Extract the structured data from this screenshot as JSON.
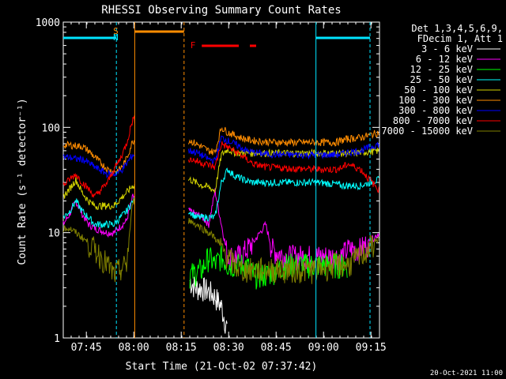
{
  "chart_data": {
    "type": "line",
    "title": "RHESSI Observing Summary Count Rates",
    "xlabel": "Start Time (21-Oct-02 07:37:42)",
    "ylabel": "Count Rate (s⁻¹ detector⁻¹)",
    "yscale": "log",
    "ylim": [
      1,
      1000
    ],
    "y_ticks": [
      1,
      10,
      100,
      1000
    ],
    "y_tick_labels": [
      "1",
      "10",
      "100",
      "1000"
    ],
    "xlim_minutes": [
      0,
      100
    ],
    "x_ticks_minutes": [
      7.3,
      22.3,
      37.3,
      52.3,
      67.3,
      82.3,
      97.3
    ],
    "x_tick_labels": [
      "07:45",
      "08:00",
      "08:15",
      "08:30",
      "08:45",
      "09:00",
      "09:15"
    ],
    "legend_header": [
      "Det 1,3,4,5,6,9,",
      "FDecim 1, Att 1"
    ],
    "legend_position": "right",
    "timestamp": "20-Oct-2021 11:00",
    "flags": [
      {
        "label": "S",
        "color": "#ff8c00",
        "start_min": 22.3,
        "end_min": 38.2
      },
      {
        "label": "N",
        "color": "#00e5ff",
        "start_min": 0,
        "end_min": 16.8
      },
      {
        "label": "F",
        "color": "#ff0000",
        "start_min": 43.8,
        "end_min": 60.0
      }
    ],
    "series": [
      {
        "name": "3 - 6 keV",
        "color": "#ffffff",
        "x": [
          40,
          42,
          44,
          46,
          48,
          50,
          52
        ],
        "y": [
          3.5,
          3.0,
          3.0,
          2.8,
          2.5,
          2.0,
          1.2
        ]
      },
      {
        "name": "6 - 12 keV",
        "color": "#ff00ff",
        "x": [
          0,
          2,
          4,
          6,
          8,
          10,
          14,
          16,
          20,
          22,
          40,
          44,
          46,
          48,
          50,
          52,
          54,
          56,
          58,
          60,
          64,
          66,
          70,
          80,
          86,
          88,
          90,
          94,
          100
        ],
        "y": [
          12,
          15,
          20,
          15,
          12,
          11,
          10,
          10,
          13,
          22,
          16,
          14,
          12,
          25,
          12,
          6,
          6,
          6,
          7,
          8,
          12,
          7,
          6,
          6,
          6,
          6,
          7,
          7,
          10
        ]
      },
      {
        "name": "12 - 25 keV",
        "color": "#00ff00",
        "x": [
          40,
          44,
          46,
          48,
          50,
          52,
          54,
          56,
          58,
          60,
          64,
          70,
          80,
          86,
          88,
          90
        ],
        "y": [
          4,
          4.5,
          6,
          5,
          6,
          5,
          5,
          5,
          5,
          4,
          4,
          5,
          5,
          5,
          5,
          5
        ]
      },
      {
        "name": "25 - 50 keV",
        "color": "#00ffff",
        "x": [
          0,
          2,
          4,
          6,
          8,
          10,
          14,
          16,
          20,
          22,
          40,
          42,
          44,
          46,
          48,
          50,
          52,
          54,
          56,
          58,
          60,
          64,
          70,
          80,
          86,
          88,
          90,
          94,
          100
        ],
        "y": [
          14,
          16,
          20,
          16,
          14,
          12,
          12,
          12,
          16,
          20,
          16,
          14,
          14,
          14,
          14,
          30,
          40,
          35,
          33,
          31,
          30,
          30,
          30,
          30,
          29,
          28,
          28,
          28,
          32
        ]
      },
      {
        "name": "50 - 100 keV",
        "color": "#d4d400",
        "x": [
          0,
          2,
          4,
          6,
          8,
          10,
          14,
          16,
          20,
          22,
          40,
          42,
          44,
          46,
          48,
          50,
          52,
          54,
          56,
          58,
          60,
          64,
          70,
          80,
          86,
          88,
          90,
          94,
          100
        ],
        "y": [
          22,
          26,
          32,
          24,
          20,
          18,
          18,
          18,
          24,
          28,
          32,
          30,
          28,
          27,
          25,
          55,
          62,
          58,
          57,
          57,
          57,
          57,
          57,
          57,
          57,
          57,
          56,
          58,
          60
        ]
      },
      {
        "name": "100 - 300 keV",
        "color": "#ff8c00",
        "x": [
          0,
          2,
          4,
          6,
          8,
          10,
          14,
          16,
          18,
          20,
          22,
          40,
          42,
          44,
          46,
          48,
          50,
          52,
          54,
          56,
          58,
          60,
          64,
          70,
          80,
          86,
          88,
          90,
          94,
          100
        ],
        "y": [
          68,
          68,
          67,
          66,
          60,
          52,
          40,
          38,
          40,
          50,
          75,
          75,
          70,
          65,
          60,
          58,
          100,
          90,
          85,
          80,
          77,
          75,
          73,
          72,
          72,
          72,
          75,
          78,
          80,
          90
        ]
      },
      {
        "name": "300 - 800 keV",
        "color": "#0000ff",
        "x": [
          0,
          2,
          4,
          6,
          8,
          10,
          14,
          16,
          18,
          20,
          22,
          40,
          42,
          44,
          46,
          48,
          50,
          52,
          54,
          56,
          58,
          60,
          64,
          70,
          80,
          86,
          88,
          90,
          94,
          100
        ],
        "y": [
          52,
          52,
          50,
          50,
          46,
          42,
          36,
          36,
          38,
          45,
          55,
          60,
          58,
          54,
          50,
          48,
          80,
          75,
          70,
          65,
          60,
          58,
          56,
          55,
          55,
          55,
          56,
          58,
          60,
          70
        ]
      },
      {
        "name": "800 - 7000 keV",
        "color": "#ff0000",
        "x": [
          0,
          2,
          4,
          6,
          8,
          10,
          14,
          16,
          18,
          20,
          22,
          40,
          42,
          44,
          46,
          48,
          50,
          52,
          54,
          56,
          58,
          60,
          64,
          70,
          80,
          86,
          88,
          90,
          94,
          100
        ],
        "y": [
          28,
          32,
          36,
          30,
          26,
          22,
          30,
          40,
          50,
          70,
          120,
          50,
          48,
          46,
          44,
          42,
          70,
          65,
          60,
          55,
          50,
          45,
          42,
          41,
          40,
          40,
          41,
          45,
          40,
          25
        ]
      },
      {
        "name": "7000 - 15000 keV",
        "color": "#808000",
        "x": [
          0,
          2,
          4,
          6,
          8,
          10,
          12,
          14,
          16,
          18,
          20,
          22,
          40,
          42,
          44,
          46,
          48,
          50,
          52,
          54,
          56,
          58,
          60,
          64,
          70,
          80,
          86,
          88,
          90,
          94,
          100
        ],
        "y": [
          11,
          11,
          10,
          9,
          8,
          7,
          6,
          5,
          4,
          4.5,
          5,
          20,
          13,
          12,
          11,
          10,
          9,
          7,
          6,
          5,
          4.5,
          4.5,
          4.5,
          4.5,
          4.5,
          4.5,
          5,
          5,
          5,
          6,
          9
        ]
      }
    ]
  }
}
